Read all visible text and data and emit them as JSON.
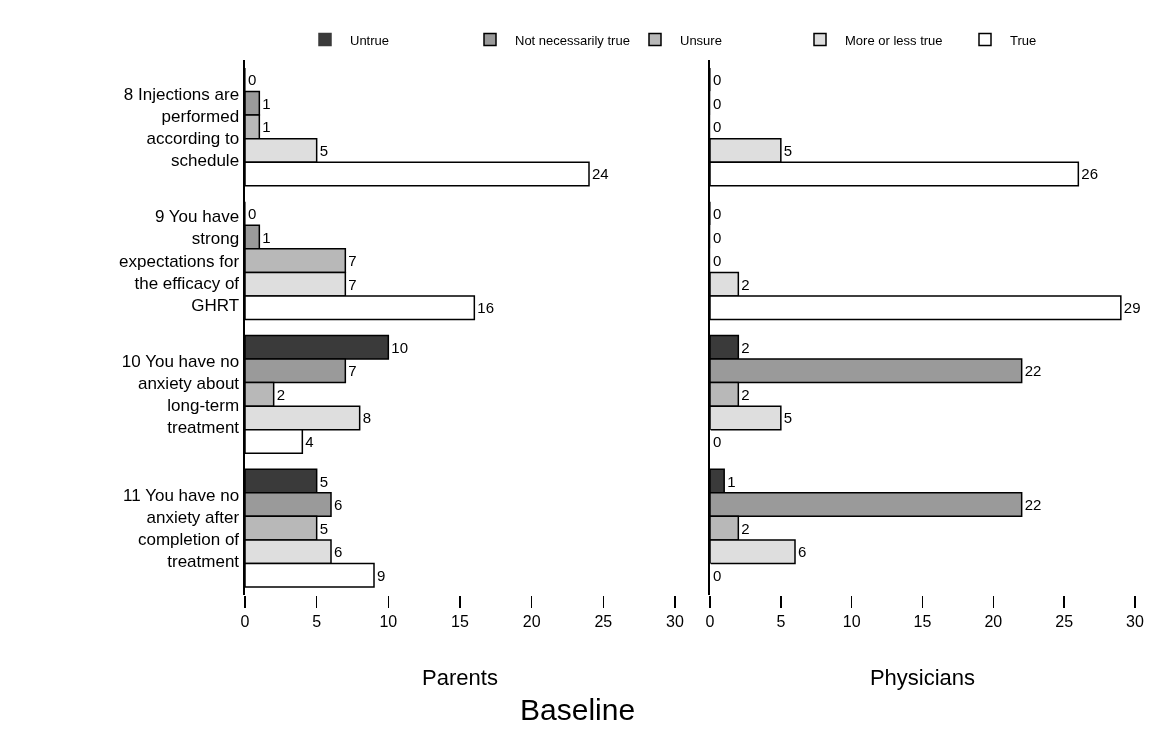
{
  "chart_data": [
    {
      "type": "bar",
      "orientation": "horizontal",
      "xlabel": "Parents",
      "categories": [
        "8 Injections are performed according to schedule",
        "9 You have strong expectations for the efficacy of GHRT",
        "10 You have no anxiety about long-term treatment",
        "11 You have no anxiety after completion of treatment"
      ],
      "series": [
        {
          "name": "Untrue",
          "color": "#3a3a3a",
          "values": [
            0,
            0,
            10,
            5
          ]
        },
        {
          "name": "Not necessarily true",
          "color": "#9a9a9a",
          "values": [
            1,
            1,
            7,
            6
          ]
        },
        {
          "name": "Unsure",
          "color": "#b8b8b8",
          "values": [
            1,
            7,
            2,
            5
          ]
        },
        {
          "name": "More or less true",
          "color": "#dedede",
          "values": [
            5,
            7,
            8,
            6
          ]
        },
        {
          "name": "True",
          "color": "#ffffff",
          "values": [
            24,
            16,
            4,
            9
          ]
        }
      ],
      "xlim": [
        0,
        30
      ],
      "xticks": [
        0,
        5,
        10,
        15,
        20,
        25,
        30
      ],
      "data_labels": true,
      "grid": false,
      "legend": "top",
      "annotations": [
        "Baseline"
      ]
    },
    {
      "type": "bar",
      "orientation": "horizontal",
      "xlabel": "Physicians",
      "categories": [
        null,
        null,
        null,
        null
      ],
      "series": [
        {
          "color": "#3a3a3a",
          "values": [
            0,
            0,
            2,
            1
          ]
        },
        {
          "color": "#9a9a9a",
          "values": [
            0,
            0,
            22,
            22
          ]
        },
        {
          "color": "#b8b8b8",
          "values": [
            0,
            0,
            2,
            2
          ]
        },
        {
          "color": "#dedede",
          "values": [
            5,
            2,
            5,
            6
          ]
        },
        {
          "color": "#ffffff",
          "values": [
            26,
            29,
            0,
            0
          ]
        }
      ],
      "xlim": [
        0,
        30
      ],
      "xticks": [
        0,
        5,
        10,
        15,
        20,
        25,
        30
      ],
      "data_labels": true,
      "grid": false,
      "legend": false,
      "tick_labels": "x"
    }
  ]
}
